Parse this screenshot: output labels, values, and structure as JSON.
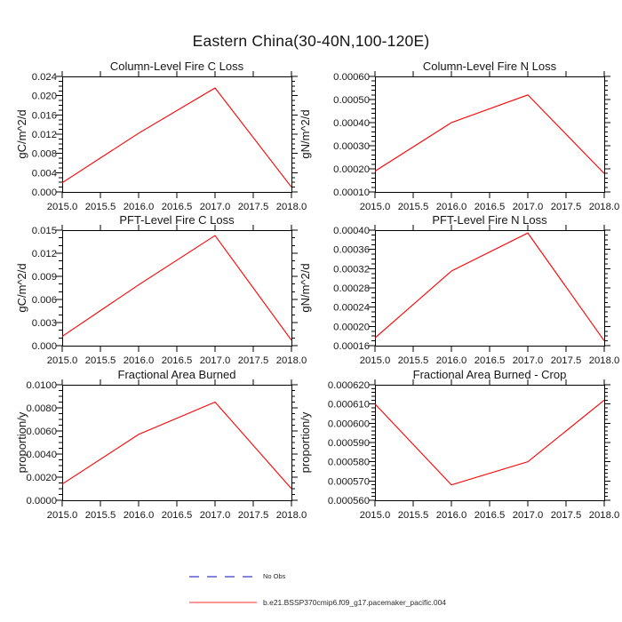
{
  "figure_title": "Eastern China(30-40N,100-120E)",
  "legend": {
    "items": [
      {
        "label": "No Obs",
        "color": "#5c5cd6",
        "style": "dashed"
      },
      {
        "label": "b.e21.BSSP370cmip6.f09_g17.pacemaker_pacific.004",
        "color": "#ff2a2a",
        "style": "solid"
      }
    ]
  },
  "axes_shared": {
    "xtick_values": [
      2015.0,
      2015.5,
      2016.0,
      2016.5,
      2017.0,
      2017.5,
      2018.0
    ],
    "xtick_labels": [
      "2015.0",
      "2015.5",
      "2016.0",
      "2016.5",
      "2017.0",
      "2017.5",
      "2018.0"
    ]
  },
  "chart_data": [
    {
      "type": "line",
      "title": "Column-Level Fire C Loss",
      "ylabel": "gC/m^2/d",
      "x": [
        2015.0,
        2016.0,
        2017.0,
        2018.0
      ],
      "values": [
        0.0019,
        0.0122,
        0.0216,
        0.001
      ],
      "xlim": [
        2015.0,
        2018.0
      ],
      "ylim": [
        0.0,
        0.024
      ],
      "ytick_values": [
        0.0,
        0.004,
        0.008,
        0.012,
        0.016,
        0.02,
        0.024
      ],
      "ytick_labels": [
        "0.000",
        "0.004",
        "0.008",
        "0.012",
        "0.016",
        "0.020",
        "0.024"
      ],
      "yminor_step": 0.001,
      "line_color": "#ff0000",
      "grid": false
    },
    {
      "type": "line",
      "title": "Column-Level Fire N Loss",
      "ylabel": "gN/m^2/d",
      "x": [
        2015.0,
        2016.0,
        2017.0,
        2018.0
      ],
      "values": [
        0.00019,
        0.0004,
        0.00052,
        0.00018
      ],
      "xlim": [
        2015.0,
        2018.0
      ],
      "ylim": [
        0.0001,
        0.0006
      ],
      "ytick_values": [
        0.0001,
        0.0002,
        0.0003,
        0.0004,
        0.0005,
        0.0006
      ],
      "ytick_labels": [
        "0.00010",
        "0.00020",
        "0.00030",
        "0.00040",
        "0.00050",
        "0.00060"
      ],
      "yminor_step": 2e-05,
      "line_color": "#ff0000",
      "grid": false
    },
    {
      "type": "line",
      "title": "PFT-Level Fire C Loss",
      "ylabel": "gC/m^2/d",
      "x": [
        2015.0,
        2016.0,
        2017.0,
        2018.0
      ],
      "values": [
        0.0012,
        0.0079,
        0.0143,
        0.0007
      ],
      "xlim": [
        2015.0,
        2018.0
      ],
      "ylim": [
        0.0,
        0.015
      ],
      "ytick_values": [
        0.0,
        0.003,
        0.006,
        0.009,
        0.012,
        0.015
      ],
      "ytick_labels": [
        "0.000",
        "0.003",
        "0.006",
        "0.009",
        "0.012",
        "0.015"
      ],
      "yminor_step": 0.001,
      "line_color": "#ff0000",
      "grid": false
    },
    {
      "type": "line",
      "title": "PFT-Level Fire N Loss",
      "ylabel": "gN/m^2/d",
      "x": [
        2015.0,
        2016.0,
        2017.0,
        2018.0
      ],
      "values": [
        0.000176,
        0.000315,
        0.000394,
        0.00017
      ],
      "xlim": [
        2015.0,
        2018.0
      ],
      "ylim": [
        0.00016,
        0.0004
      ],
      "ytick_values": [
        0.00016,
        0.0002,
        0.00024,
        0.00028,
        0.00032,
        0.00036,
        0.0004
      ],
      "ytick_labels": [
        "0.00016",
        "0.00020",
        "0.00024",
        "0.00028",
        "0.00032",
        "0.00036",
        "0.00040"
      ],
      "yminor_step": 1e-05,
      "line_color": "#ff0000",
      "grid": false
    },
    {
      "type": "line",
      "title": "Fractional Area Burned",
      "ylabel": "proportion/y",
      "x": [
        2015.0,
        2016.0,
        2017.0,
        2018.0
      ],
      "values": [
        0.0014,
        0.0057,
        0.0085,
        0.001
      ],
      "xlim": [
        2015.0,
        2018.0
      ],
      "ylim": [
        0.0,
        0.01
      ],
      "ytick_values": [
        0.0,
        0.002,
        0.004,
        0.006,
        0.008,
        0.01
      ],
      "ytick_labels": [
        "0.0000",
        "0.0020",
        "0.0040",
        "0.0060",
        "0.0080",
        "0.0100"
      ],
      "yminor_step": 0.0005,
      "line_color": "#ff0000",
      "grid": false
    },
    {
      "type": "line",
      "title": "Fractional Area Burned - Crop",
      "ylabel": "proportion/y",
      "x": [
        2015.0,
        2016.0,
        2017.0,
        2018.0
      ],
      "values": [
        0.00061,
        0.000568,
        0.00058,
        0.000612
      ],
      "xlim": [
        2015.0,
        2018.0
      ],
      "ylim": [
        0.00056,
        0.00062
      ],
      "ytick_values": [
        0.00056,
        0.00057,
        0.00058,
        0.00059,
        0.0006,
        0.00061,
        0.00062
      ],
      "ytick_labels": [
        "0.000560",
        "0.000570",
        "0.000580",
        "0.000590",
        "0.000600",
        "0.000610",
        "0.000620"
      ],
      "yminor_step": 2e-06,
      "line_color": "#ff0000",
      "grid": false
    }
  ]
}
